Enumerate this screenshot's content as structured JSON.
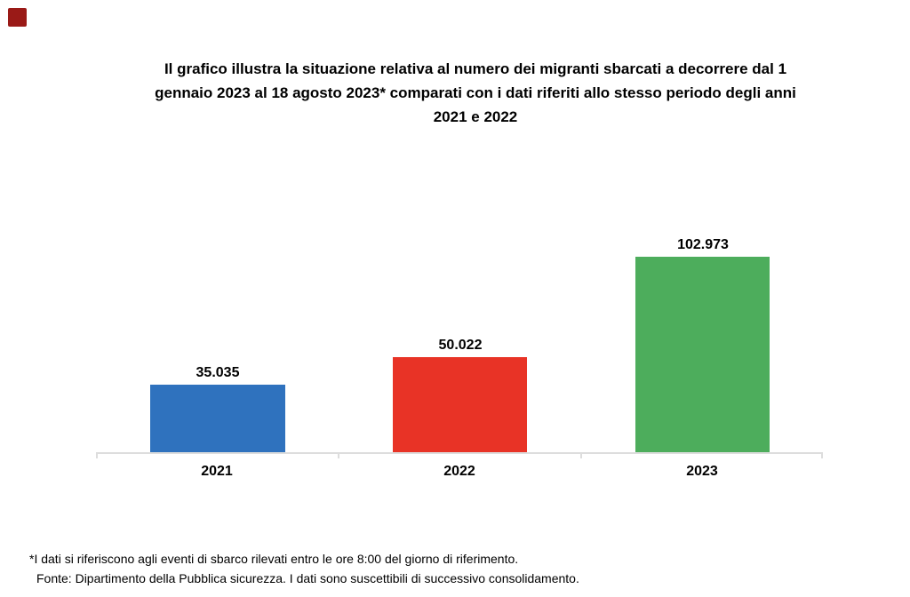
{
  "decor": {
    "corner_square_color": "#9a1a17"
  },
  "header": {
    "title_lines": [
      "Il grafico illustra la situazione relativa al numero dei migranti sbarcati a decorrere dal 1",
      "gennaio 2023 al 18 agosto 2023* comparati con i dati riferiti allo stesso periodo degli anni",
      "2021 e 2022"
    ]
  },
  "chart_data": {
    "type": "bar",
    "title": "Il grafico illustra la situazione relativa al numero dei migranti sbarcati a decorrere dal 1 gennaio 2023 al 18 agosto 2023* comparati con i dati riferiti allo stesso periodo degli anni 2021 e 2022",
    "categories": [
      "2021",
      "2022",
      "2023"
    ],
    "values": [
      35035,
      50022,
      102973
    ],
    "value_labels": [
      "35.035",
      "50.022",
      "102.973"
    ],
    "series_colors": [
      "#2f72be",
      "#e83326",
      "#4dad5c"
    ],
    "xlabel": "",
    "ylabel": "",
    "ylim": [
      0,
      110000
    ],
    "grid": false,
    "legend": false,
    "axis_line_color": "#dddddd",
    "data_label_position": "above-bar"
  },
  "footnotes": {
    "note": "*I dati si riferiscono agli eventi di sbarco rilevati entro le ore 8:00 del giorno di riferimento.",
    "source": "Fonte: Dipartimento della Pubblica sicurezza. I dati sono suscettibili di successivo consolidamento."
  }
}
